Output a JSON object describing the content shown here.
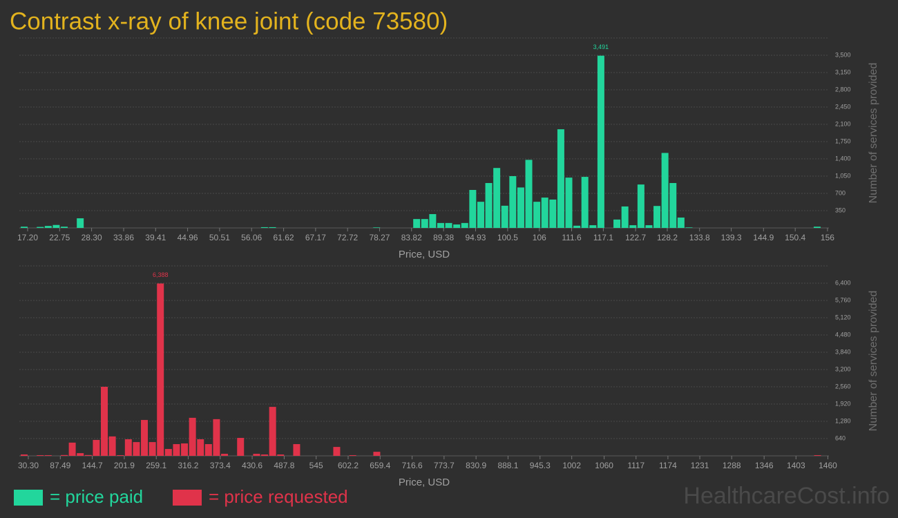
{
  "title": "Contrast x-ray of knee joint (code 73580)",
  "watermark": "HealthcareCost.info",
  "chart_data": [
    {
      "type": "bar",
      "xlabel": "Price, USD",
      "ylabel": "Number of services provided",
      "grid": true,
      "xlim": [
        15.76,
        156.25
      ],
      "ylim": [
        0,
        3850
      ],
      "xticks": [
        {
          "value": 17.2,
          "label": "17.20"
        },
        22.75,
        {
          "value": 28.3,
          "label": "28.30"
        },
        33.86,
        39.41,
        44.96,
        50.51,
        56.06,
        61.62,
        67.17,
        72.72,
        78.27,
        83.82,
        89.38,
        94.93,
        100.5,
        106,
        111.6,
        117.1,
        122.7,
        128.2,
        133.8,
        139.3,
        144.9,
        150.4,
        156
      ],
      "yticks": [
        350,
        700,
        {
          "value": 1050,
          "label": "1,050"
        },
        {
          "value": 1400,
          "label": "1,400"
        },
        {
          "value": 1750,
          "label": "1,750"
        },
        {
          "value": 2100,
          "label": "2,100"
        },
        {
          "value": 2450,
          "label": "2,450"
        },
        {
          "value": 2800,
          "label": "2,800"
        },
        {
          "value": 3150,
          "label": "3,150"
        },
        {
          "value": 3500,
          "label": "3,500"
        }
      ],
      "x": [
        16.6,
        19.38,
        20.77,
        22.16,
        23.55,
        26.33,
        58.3,
        59.69,
        77.76,
        84.71,
        86.1,
        87.49,
        88.88,
        90.27,
        91.66,
        93.05,
        94.44,
        95.83,
        97.22,
        98.61,
        100.0,
        101.39,
        102.78,
        104.17,
        105.56,
        106.95,
        108.34,
        109.73,
        111.12,
        112.51,
        113.9,
        115.29,
        116.68,
        119.46,
        120.85,
        122.24,
        123.63,
        125.02,
        126.41,
        127.8,
        129.19,
        130.58,
        131.97,
        154.21
      ],
      "series": [
        {
          "name": "= price paid",
          "color": "#22d69c",
          "values": [
            25,
            20,
            40,
            60,
            25,
            195,
            15,
            15,
            10,
            180,
            180,
            280,
            100,
            100,
            70,
            100,
            770,
            530,
            910,
            1215,
            450,
            1050,
            820,
            1380,
            530,
            615,
            575,
            2000,
            1020,
            45,
            1035,
            55,
            3491,
            170,
            435,
            55,
            880,
            55,
            445,
            1520,
            910,
            210,
            10,
            25
          ],
          "value_labels": [
            null,
            null,
            null,
            null,
            null,
            null,
            null,
            null,
            null,
            null,
            null,
            null,
            null,
            null,
            null,
            null,
            null,
            null,
            null,
            null,
            null,
            null,
            null,
            null,
            null,
            null,
            null,
            null,
            null,
            null,
            null,
            null,
            "3,491",
            null,
            null,
            null,
            null,
            null,
            null,
            null,
            null,
            null,
            null,
            null
          ]
        }
      ]
    },
    {
      "type": "bar",
      "xlabel": "Price, USD",
      "ylabel": "Number of services provided",
      "grid": true,
      "xlim": [
        14.24,
        1461.9
      ],
      "ylim": [
        0,
        7040
      ],
      "xticks": [
        {
          "value": 30.3,
          "label": "30.30"
        },
        87.49,
        144.7,
        201.9,
        259.1,
        316.2,
        373.4,
        430.6,
        487.8,
        545,
        602.2,
        659.4,
        716.6,
        773.7,
        830.9,
        888.1,
        945.3,
        1002,
        1060,
        1117,
        1174,
        1231,
        1288,
        1346,
        1403,
        1460
      ],
      "yticks": [
        640,
        {
          "value": 1280,
          "label": "1,280"
        },
        {
          "value": 1920,
          "label": "1,920"
        },
        {
          "value": 2560,
          "label": "2,560"
        },
        {
          "value": 3200,
          "label": "3,200"
        },
        {
          "value": 3840,
          "label": "3,840"
        },
        {
          "value": 4480,
          "label": "4,480"
        },
        {
          "value": 5120,
          "label": "5,120"
        },
        {
          "value": 5760,
          "label": "5,760"
        },
        {
          "value": 6400,
          "label": "6,400"
        }
      ],
      "x": [
        22.89,
        51.55,
        65.88,
        94.54,
        108.87,
        123.2,
        137.53,
        151.86,
        166.19,
        180.52,
        194.85,
        209.18,
        223.51,
        237.84,
        252.17,
        266.5,
        280.83,
        295.16,
        309.49,
        323.82,
        338.15,
        352.48,
        366.81,
        381.14,
        409.8,
        438.46,
        452.79,
        467.12,
        481.45,
        510.11,
        581.76,
        610.42,
        653.41,
        1441.56
      ],
      "series": [
        {
          "name": "= price requested",
          "color": "#e0334a",
          "values": [
            50,
            25,
            25,
            30,
            490,
            100,
            30,
            590,
            2560,
            720,
            25,
            615,
            510,
            1330,
            510,
            6388,
            255,
            435,
            460,
            1410,
            615,
            435,
            1360,
            75,
            665,
            75,
            50,
            1815,
            50,
            435,
            330,
            25,
            150,
            25
          ],
          "value_labels": [
            null,
            null,
            null,
            null,
            null,
            null,
            null,
            null,
            null,
            null,
            null,
            null,
            null,
            null,
            null,
            "6,388",
            null,
            null,
            null,
            null,
            null,
            null,
            null,
            null,
            null,
            null,
            null,
            null,
            null,
            null,
            null,
            null,
            null,
            null
          ]
        }
      ]
    }
  ]
}
